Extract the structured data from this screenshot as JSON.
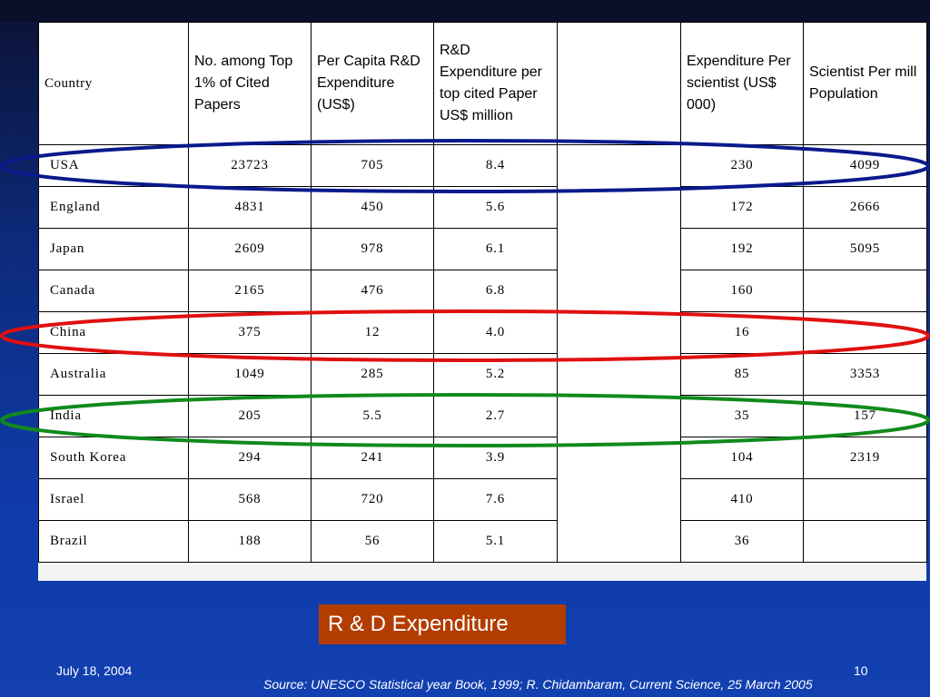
{
  "table": {
    "headers": [
      "Country",
      "No. among Top 1% of Cited Papers",
      "Per Capita R&D Expenditure (US$)",
      "R&D Expenditure per top cited Paper US$ million",
      "",
      "Expenditure Per scientist (US$ 000)",
      "Scientist Per mill Population"
    ],
    "rows": [
      [
        "USA",
        "23723",
        "705",
        "8.4",
        "",
        "230",
        "4099"
      ],
      [
        "England",
        "4831",
        "450",
        "5.6",
        "",
        "172",
        "2666"
      ],
      [
        "Japan",
        "2609",
        "978",
        "6.1",
        "",
        "192",
        "5095"
      ],
      [
        "Canada",
        "2165",
        "476",
        "6.8",
        "",
        "160",
        ""
      ],
      [
        "China",
        "375",
        "12",
        "4.0",
        "",
        "16",
        ""
      ],
      [
        "Australia",
        "1049",
        "285",
        "5.2",
        "",
        "85",
        "3353"
      ],
      [
        "India",
        "205",
        "5.5",
        "2.7",
        "",
        "35",
        "157"
      ],
      [
        "South Korea",
        "294",
        "241",
        "3.9",
        "",
        "104",
        "2319"
      ],
      [
        "Israel",
        "568",
        "720",
        "7.6",
        "",
        "410",
        ""
      ],
      [
        "Brazil",
        "188",
        "56",
        "5.1",
        "",
        "36",
        ""
      ]
    ]
  },
  "highlights": [
    {
      "row": "USA",
      "color": "#0a1a8c"
    },
    {
      "row": "China",
      "color": "#e01010"
    },
    {
      "row": "India",
      "color": "#118a1c"
    }
  ],
  "caption": "R & D Expenditure",
  "footer": {
    "date": "July 18, 2004",
    "page": "10",
    "source": "Source: UNESCO Statistical year Book, 1999; R. Chidambaram, Current Science, 25 March 2005"
  }
}
